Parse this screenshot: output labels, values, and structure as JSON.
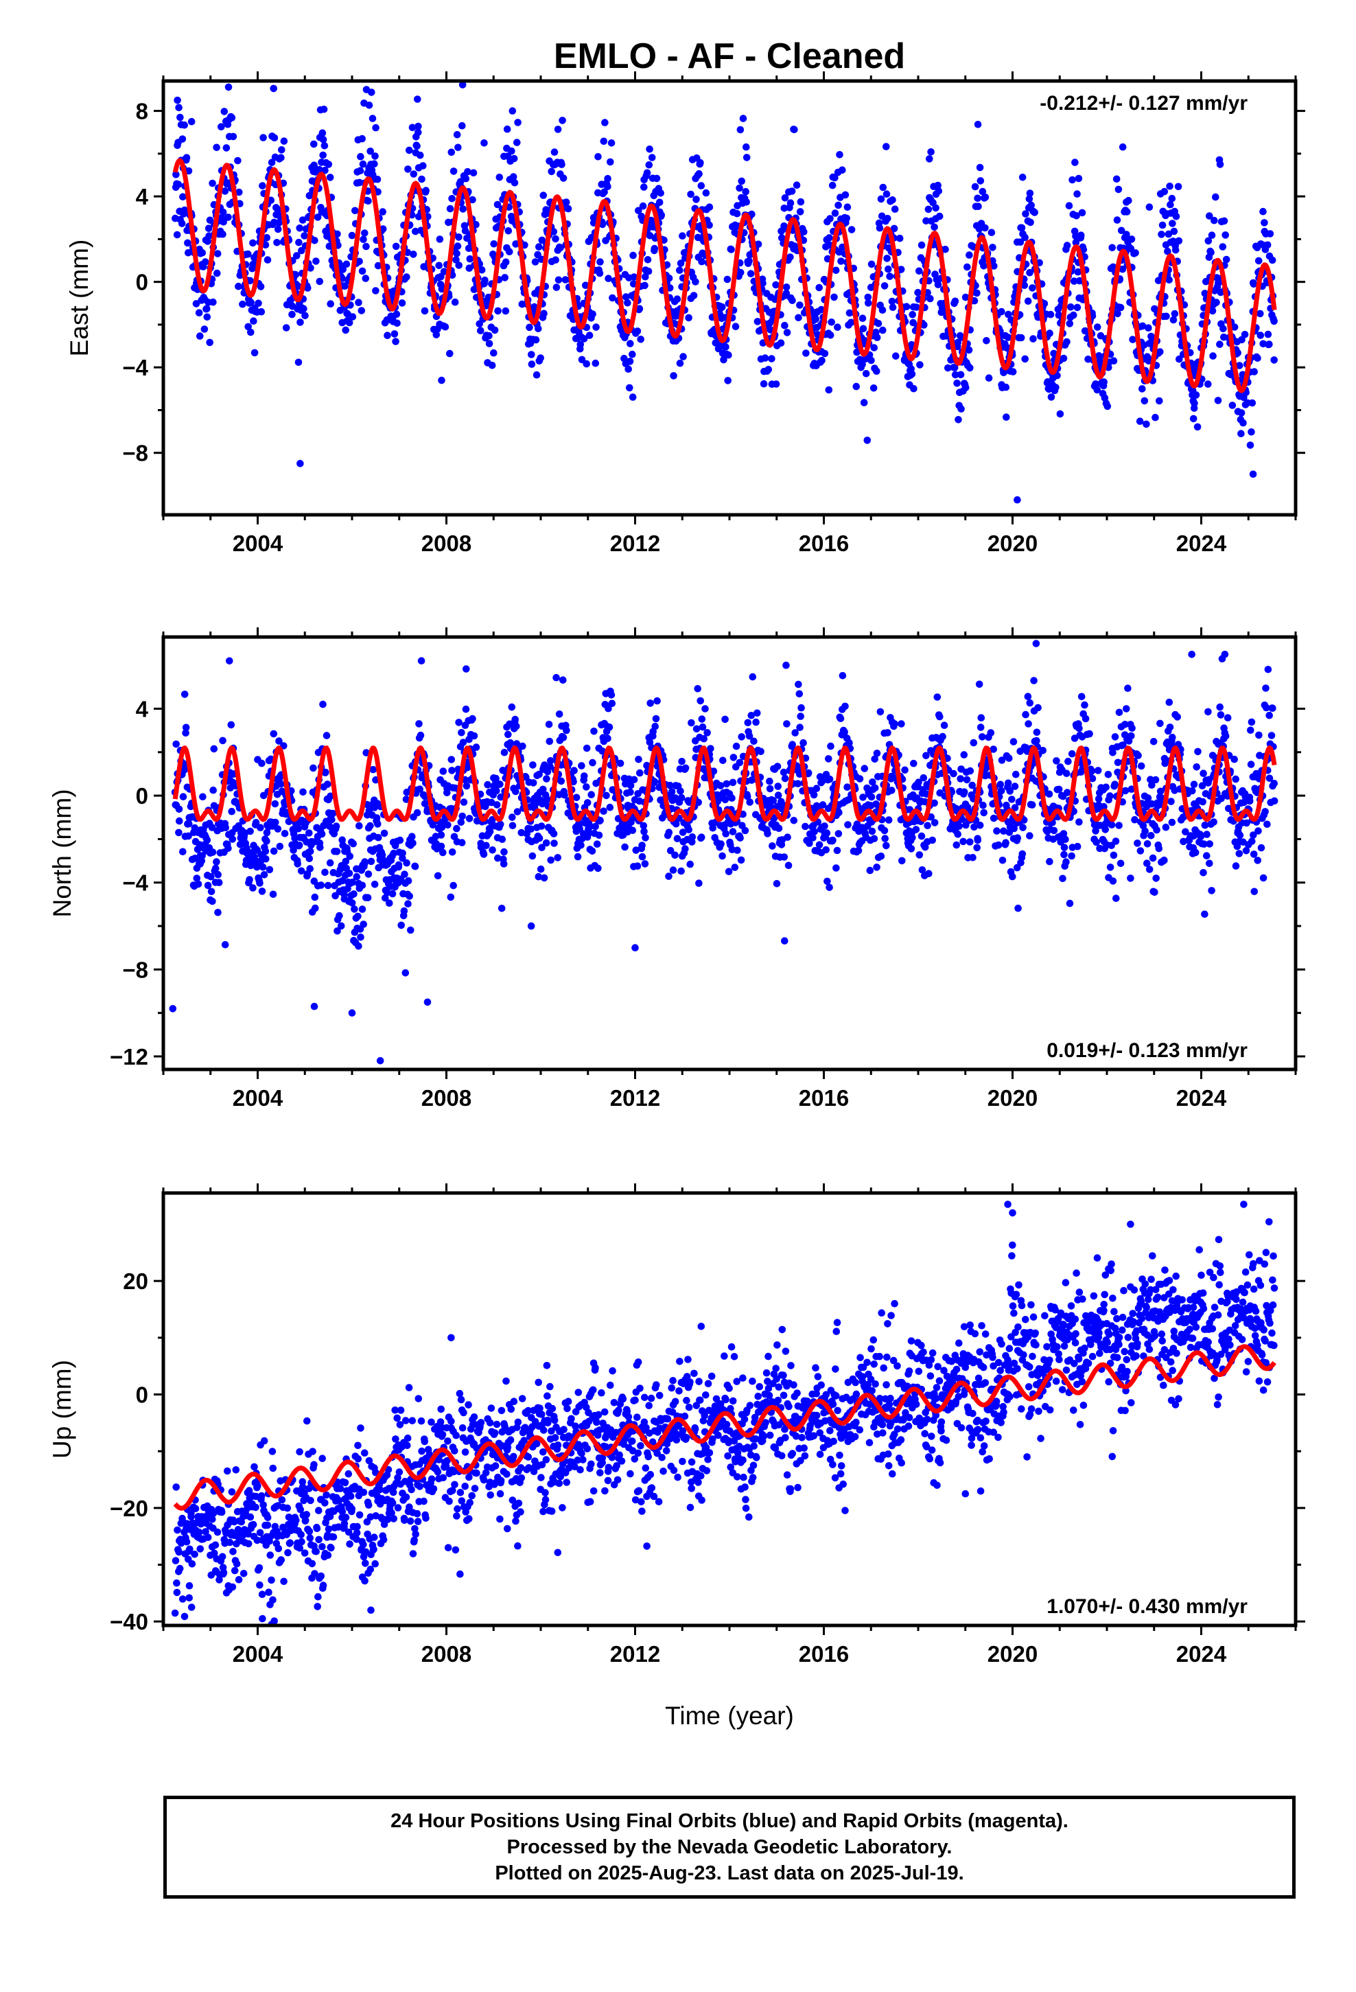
{
  "title": "EMLO  - AF - Cleaned",
  "xlabel": "Time (year)",
  "colors": {
    "points": "#0000ff",
    "fit": "#ff0000",
    "frame": "#000000"
  },
  "chart_data": [
    {
      "type": "scatter",
      "panel": "East",
      "ylabel": "East (mm)",
      "rate_text": "-0.212+/- 0.127 mm/yr",
      "rate_position": "top-right",
      "xlim": [
        2002.0,
        2026.0
      ],
      "ylim": [
        -10.9,
        9.4
      ],
      "xticks": [
        2004,
        2008,
        2012,
        2016,
        2020,
        2024
      ],
      "yticks": [
        -8,
        -4,
        0,
        4,
        8
      ],
      "ytick_labels": [
        "−8",
        "−4",
        "0",
        "4",
        "8"
      ],
      "data_start": 2002.25,
      "data_end": 2025.55,
      "series": [
        {
          "kind": "points",
          "x": [
            2002.3,
            2002.6,
            2003.4,
            2004.1,
            2004.9,
            2006.4,
            2007.4,
            2008.8,
            2009.4,
            2011.5,
            2013.4,
            2016.5,
            2019.5,
            2020.1,
            2022.9,
            2024.4,
            2025.1
          ],
          "y": [
            8.5,
            7.5,
            6.8,
            4.5,
            -8.5,
            5.5,
            7.0,
            6.5,
            8.0,
            6.5,
            4.5,
            3.5,
            -4.5,
            -10.2,
            3.5,
            5.5,
            -9.0
          ]
        },
        {
          "kind": "fit",
          "model": "trend-annual",
          "a0": 2.7,
          "trend_mm_yr": -0.212,
          "amplitude": 3.0,
          "phase_peak": 0.35
        }
      ]
    },
    {
      "type": "scatter",
      "panel": "North",
      "ylabel": "North (mm)",
      "rate_text": "0.019+/- 0.123 mm/yr",
      "rate_position": "bottom-right",
      "xlim": [
        2002.0,
        2026.0
      ],
      "ylim": [
        -12.6,
        7.3
      ],
      "xticks": [
        2004,
        2008,
        2012,
        2016,
        2020,
        2024
      ],
      "yticks": [
        -12,
        -8,
        -4,
        0,
        4
      ],
      "ytick_labels": [
        "−12",
        "−8",
        "−4",
        "0",
        "4"
      ],
      "data_start": 2002.25,
      "data_end": 2025.55,
      "series": [
        {
          "kind": "points",
          "x": [
            2002.2,
            2003.4,
            2005.2,
            2006.0,
            2006.6,
            2007.6,
            2009.8,
            2012.0,
            2015.2,
            2020.5,
            2022.5,
            2023.8,
            2024.5
          ],
          "y": [
            -9.8,
            6.2,
            -9.7,
            -10.0,
            -12.2,
            -9.5,
            -6.0,
            -7.0,
            6.0,
            7.0,
            -3.8,
            6.5,
            6.5
          ]
        },
        {
          "kind": "fit",
          "model": "semiannual",
          "a0": 0.0,
          "amplitude_annual": 1.45,
          "phase_peak": 0.45,
          "amplitude_semiannual": 0.75
        }
      ]
    },
    {
      "type": "scatter",
      "panel": "Up",
      "ylabel": "Up (mm)",
      "rate_text": "1.070+/- 0.430 mm/yr",
      "rate_position": "bottom-right",
      "xlim": [
        2002.0,
        2026.0
      ],
      "ylim": [
        -40.7,
        35.5
      ],
      "xticks": [
        2004,
        2008,
        2012,
        2016,
        2020,
        2024
      ],
      "yticks": [
        -40,
        -20,
        0,
        20
      ],
      "ytick_labels": [
        "−40",
        "−20",
        "0",
        "20"
      ],
      "data_start": 2002.25,
      "data_end": 2025.55,
      "series": [
        {
          "kind": "points",
          "x": [
            2002.6,
            2004.1,
            2006.4,
            2008.1,
            2013.4,
            2017.5,
            2018.4,
            2019.0,
            2019.9,
            2020.0,
            2022.5,
            2024.9
          ],
          "y": [
            -37.5,
            -39.5,
            -38.0,
            10.0,
            12.0,
            16.0,
            -16.0,
            -17.5,
            33.5,
            32.0,
            30.0,
            33.5
          ]
        },
        {
          "kind": "fit",
          "model": "trend-annual",
          "a0": -18.0,
          "trend_mm_yr": 1.07,
          "amplitude": 2.2,
          "phase_peak": 0.9
        }
      ]
    }
  ],
  "footer": {
    "line1": "24 Hour Positions Using Final Orbits (blue) and Rapid Orbits (magenta).",
    "line2": "Processed by the Nevada Geodetic Laboratory.",
    "line3": "Plotted on 2025-Aug-23. Last data on 2025-Jul-19."
  }
}
